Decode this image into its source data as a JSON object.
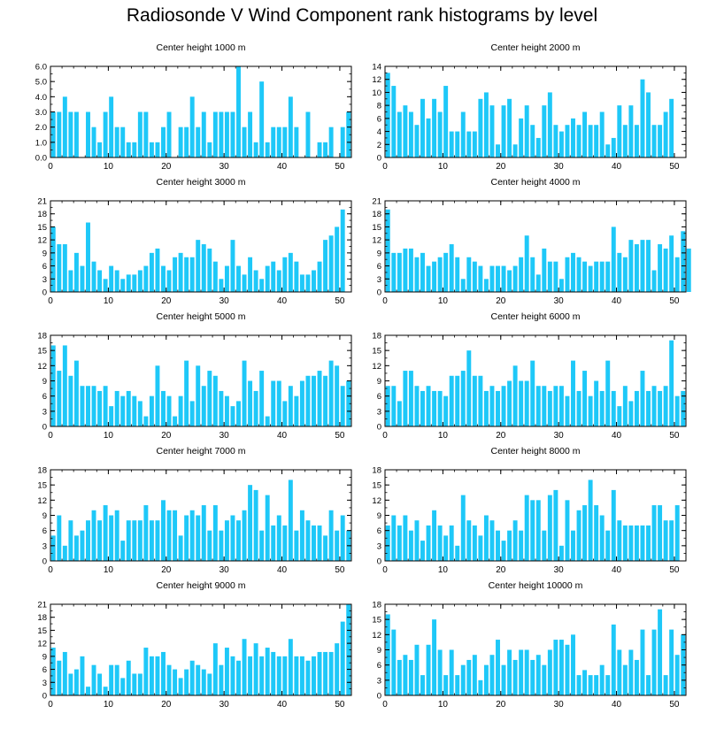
{
  "title": "Radiosonde V Wind Component rank histograms by level",
  "colors": {
    "bar": "#1EC8F8",
    "frame": "#000000",
    "background": "#ffffff"
  },
  "chart_data": [
    {
      "type": "bar",
      "title": "Center height 1000 m",
      "xlim": [
        0,
        52
      ],
      "ylim": [
        0,
        6
      ],
      "xticks": [
        0,
        10,
        20,
        30,
        40,
        50
      ],
      "yticks": [
        0,
        1,
        2,
        3,
        4,
        5,
        6
      ],
      "ytick_labels": [
        "0.0",
        "1.0",
        "2.0",
        "3.0",
        "4.0",
        "5.0",
        "6.0"
      ],
      "values": [
        3,
        3,
        4,
        3,
        3,
        0,
        3,
        2,
        1,
        3,
        4,
        2,
        2,
        1,
        1,
        3,
        3,
        1,
        1,
        2,
        3,
        0,
        2,
        2,
        4,
        2,
        3,
        1,
        3,
        3,
        3,
        3,
        6,
        2,
        3,
        1,
        5,
        1,
        2,
        2,
        2,
        4,
        2,
        0,
        3,
        0,
        1,
        1,
        2,
        0,
        2,
        3
      ]
    },
    {
      "type": "bar",
      "title": "Center height 2000 m",
      "xlim": [
        0,
        52
      ],
      "ylim": [
        0,
        14
      ],
      "xticks": [
        0,
        10,
        20,
        30,
        40,
        50
      ],
      "yticks": [
        0,
        2,
        4,
        6,
        8,
        10,
        12,
        14
      ],
      "ytick_labels": [
        "0",
        "2",
        "4",
        "6",
        "8",
        "10",
        "12",
        "14"
      ],
      "values": [
        13,
        11,
        7,
        8,
        7,
        5,
        9,
        6,
        9,
        7,
        11,
        4,
        4,
        7,
        4,
        4,
        9,
        10,
        8,
        2,
        8,
        9,
        2,
        6,
        8,
        5,
        3,
        8,
        10,
        5,
        4,
        5,
        6,
        5,
        7,
        5,
        5,
        7,
        2,
        3,
        8,
        5,
        8,
        5,
        12,
        10,
        5,
        5,
        7,
        9
      ]
    },
    {
      "type": "bar",
      "title": "Center height 3000 m",
      "xlim": [
        0,
        52
      ],
      "ylim": [
        0,
        21
      ],
      "xticks": [
        0,
        10,
        20,
        30,
        40,
        50
      ],
      "yticks": [
        0,
        3,
        6,
        9,
        12,
        15,
        18,
        21
      ],
      "ytick_labels": [
        "0",
        "3",
        "6",
        "9",
        "12",
        "15",
        "18",
        "21"
      ],
      "values": [
        15,
        11,
        11,
        5,
        9,
        6,
        16,
        7,
        5,
        3,
        6,
        5,
        3,
        4,
        4,
        5,
        6,
        9,
        10,
        6,
        5,
        8,
        9,
        8,
        8,
        12,
        11,
        10,
        7,
        3,
        6,
        12,
        6,
        4,
        8,
        5,
        3,
        6,
        7,
        5,
        8,
        9,
        7,
        4,
        4,
        5,
        7,
        12,
        13,
        15,
        19
      ]
    },
    {
      "type": "bar",
      "title": "Center height 4000 m",
      "xlim": [
        0,
        52
      ],
      "ylim": [
        0,
        21
      ],
      "xticks": [
        0,
        10,
        20,
        30,
        40,
        50
      ],
      "yticks": [
        0,
        3,
        6,
        9,
        12,
        15,
        18,
        21
      ],
      "ytick_labels": [
        "0",
        "3",
        "6",
        "9",
        "12",
        "15",
        "18",
        "21"
      ],
      "values": [
        19,
        9,
        9,
        10,
        10,
        8,
        9,
        6,
        7,
        8,
        9,
        11,
        8,
        3,
        8,
        7,
        6,
        3,
        6,
        6,
        6,
        5,
        6,
        8,
        13,
        8,
        4,
        10,
        7,
        7,
        3,
        8,
        9,
        8,
        7,
        6,
        7,
        7,
        7,
        15,
        9,
        8,
        12,
        11,
        12,
        12,
        5,
        11,
        10,
        13,
        8,
        14,
        10
      ]
    },
    {
      "type": "bar",
      "title": "Center height 5000 m",
      "xlim": [
        0,
        52
      ],
      "ylim": [
        0,
        18
      ],
      "xticks": [
        0,
        10,
        20,
        30,
        40,
        50
      ],
      "yticks": [
        0,
        3,
        6,
        9,
        12,
        15,
        18
      ],
      "ytick_labels": [
        "0",
        "3",
        "6",
        "9",
        "12",
        "15",
        "18"
      ],
      "values": [
        16,
        11,
        16,
        10,
        13,
        8,
        8,
        8,
        7,
        8,
        4,
        7,
        6,
        7,
        6,
        5,
        2,
        6,
        12,
        7,
        6,
        2,
        6,
        13,
        5,
        12,
        8,
        11,
        10,
        7,
        6,
        4,
        5,
        13,
        9,
        7,
        11,
        2,
        9,
        9,
        5,
        8,
        6,
        9,
        10,
        10,
        11,
        10,
        13,
        12,
        8,
        9
      ]
    },
    {
      "type": "bar",
      "title": "Center height 6000 m",
      "xlim": [
        0,
        52
      ],
      "ylim": [
        0,
        18
      ],
      "xticks": [
        0,
        10,
        20,
        30,
        40,
        50
      ],
      "yticks": [
        0,
        3,
        6,
        9,
        12,
        15,
        18
      ],
      "ytick_labels": [
        "0",
        "3",
        "6",
        "9",
        "12",
        "15",
        "18"
      ],
      "values": [
        8,
        8,
        5,
        11,
        11,
        8,
        7,
        8,
        7,
        7,
        6,
        10,
        10,
        11,
        15,
        10,
        10,
        7,
        8,
        7,
        8,
        9,
        12,
        9,
        9,
        13,
        8,
        8,
        7,
        8,
        8,
        6,
        13,
        7,
        11,
        6,
        9,
        7,
        13,
        7,
        4,
        8,
        5,
        7,
        11,
        7,
        8,
        7,
        8,
        17,
        6,
        7
      ]
    },
    {
      "type": "bar",
      "title": "Center height 7000 m",
      "xlim": [
        0,
        52
      ],
      "ylim": [
        0,
        18
      ],
      "xticks": [
        0,
        10,
        20,
        30,
        40,
        50
      ],
      "yticks": [
        0,
        3,
        6,
        9,
        12,
        15,
        18
      ],
      "ytick_labels": [
        "0",
        "3",
        "6",
        "9",
        "12",
        "15",
        "18"
      ],
      "values": [
        5,
        9,
        3,
        8,
        5,
        6,
        8,
        10,
        8,
        11,
        9,
        10,
        4,
        8,
        8,
        8,
        11,
        8,
        8,
        12,
        10,
        10,
        5,
        9,
        10,
        9,
        11,
        6,
        11,
        6,
        8,
        9,
        8,
        10,
        15,
        14,
        6,
        13,
        7,
        9,
        7,
        16,
        6,
        10,
        8,
        7,
        7,
        5,
        10,
        6,
        9,
        6
      ]
    },
    {
      "type": "bar",
      "title": "Center height 8000 m",
      "xlim": [
        0,
        52
      ],
      "ylim": [
        0,
        18
      ],
      "xticks": [
        0,
        10,
        20,
        30,
        40,
        50
      ],
      "yticks": [
        0,
        3,
        6,
        9,
        12,
        15,
        18
      ],
      "ytick_labels": [
        "0",
        "3",
        "6",
        "9",
        "12",
        "15",
        "18"
      ],
      "values": [
        7,
        9,
        7,
        9,
        6,
        8,
        4,
        7,
        10,
        7,
        5,
        7,
        3,
        13,
        8,
        7,
        5,
        9,
        8,
        6,
        4,
        6,
        8,
        6,
        13,
        12,
        12,
        6,
        13,
        14,
        3,
        12,
        6,
        10,
        11,
        16,
        11,
        9,
        6,
        14,
        8,
        7,
        7,
        7,
        7,
        7,
        11,
        11,
        8,
        8,
        11
      ]
    },
    {
      "type": "bar",
      "title": "Center height 9000 m",
      "xlim": [
        0,
        52
      ],
      "ylim": [
        0,
        21
      ],
      "xticks": [
        0,
        10,
        20,
        30,
        40,
        50
      ],
      "yticks": [
        0,
        3,
        6,
        9,
        12,
        15,
        18,
        21
      ],
      "ytick_labels": [
        "0",
        "3",
        "6",
        "9",
        "12",
        "15",
        "18",
        "21"
      ],
      "values": [
        11,
        8,
        10,
        5,
        6,
        9,
        2,
        7,
        5,
        2,
        7,
        7,
        4,
        8,
        5,
        5,
        11,
        9,
        9,
        10,
        7,
        6,
        4,
        6,
        8,
        7,
        6,
        5,
        12,
        7,
        11,
        9,
        8,
        13,
        9,
        12,
        9,
        11,
        10,
        9,
        9,
        13,
        9,
        9,
        8,
        9,
        10,
        10,
        10,
        12,
        17,
        21
      ]
    },
    {
      "type": "bar",
      "title": "Center height 10000 m",
      "xlim": [
        0,
        52
      ],
      "ylim": [
        0,
        18
      ],
      "xticks": [
        0,
        10,
        20,
        30,
        40,
        50
      ],
      "yticks": [
        0,
        3,
        6,
        9,
        12,
        15,
        18
      ],
      "ytick_labels": [
        "0",
        "3",
        "6",
        "9",
        "12",
        "15",
        "18"
      ],
      "values": [
        16,
        13,
        7,
        8,
        7,
        10,
        4,
        10,
        15,
        9,
        4,
        9,
        4,
        6,
        7,
        8,
        3,
        6,
        8,
        11,
        6,
        9,
        7,
        9,
        9,
        7,
        8,
        6,
        9,
        11,
        11,
        10,
        12,
        4,
        5,
        4,
        4,
        6,
        4,
        14,
        9,
        6,
        9,
        7,
        13,
        4,
        13,
        17,
        4,
        13,
        8,
        12
      ]
    }
  ]
}
